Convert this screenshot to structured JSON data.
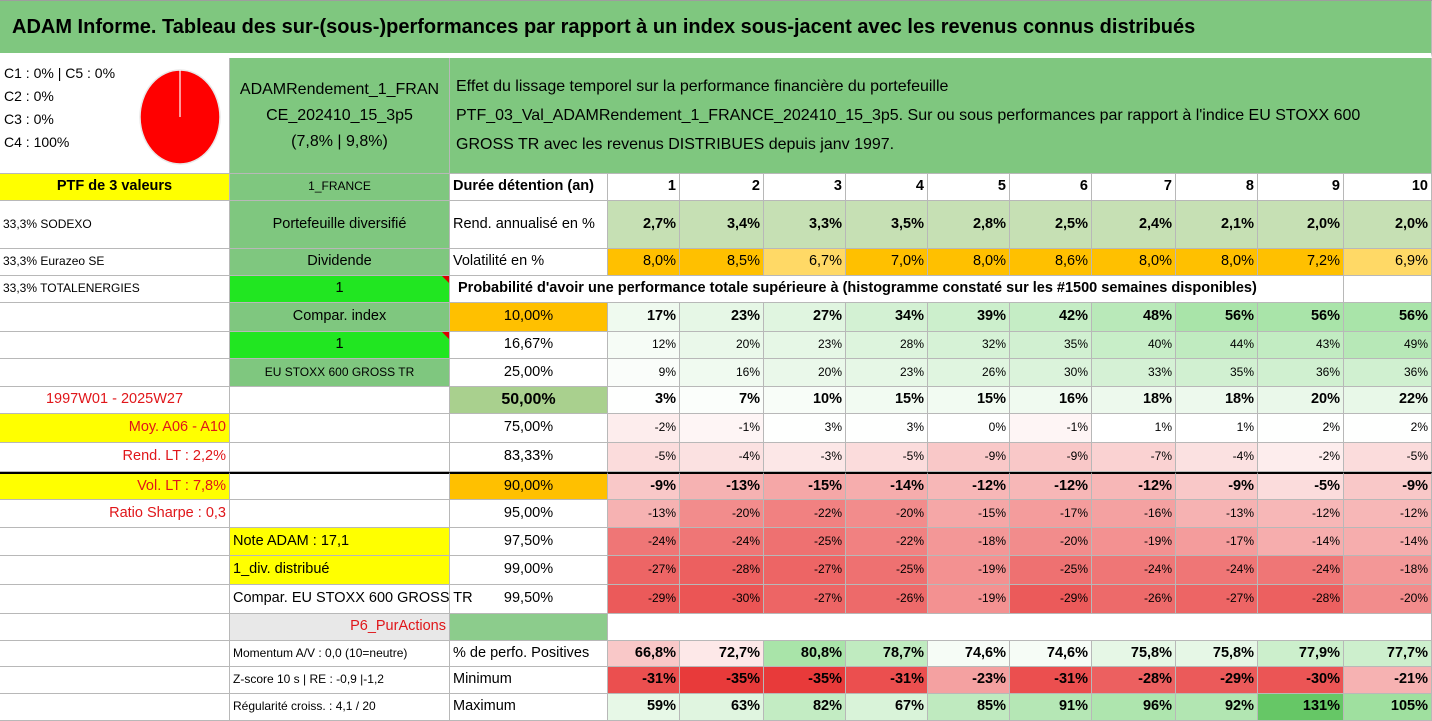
{
  "title": "ADAM Informe. Tableau des sur-(sous-)performances par rapport à un index sous-jacent avec les revenus connus distribués",
  "pie": {
    "lines": [
      "C1 : 0% | C5 : 0%",
      "C2 : 0%",
      "C3 : 0%",
      "C4 : 100%"
    ],
    "color": "#ff0000"
  },
  "header": {
    "portfolio_name_1": "ADAMRendement_1_FRAN",
    "portfolio_name_2": "CE_202410_15_3p5",
    "portfolio_perf": "(7,8% | 9,8%)",
    "desc_1": "Effet du lissage temporel sur la performance financière du portefeuille",
    "desc_2": "PTF_03_Val_ADAMRendement_1_FRANCE_202410_15_3p5. Sur ou sous performances par rapport à l'indice EU STOXX 600",
    "desc_3": "GROSS TR avec les revenus DISTRIBUES depuis janv 1997."
  },
  "col_a": {
    "ptf": "PTF de 3 valeurs",
    "holding_1": "33,3% SODEXO",
    "holding_2": "33,3% Eurazeo SE",
    "holding_3": "33,3% TOTALENERGIES",
    "period": "1997W01 - 2025W27",
    "moy": "Moy. A06 - A10",
    "rend_lt": "Rend. LT : 2,2%",
    "vol_lt": "Vol. LT : 7,8%",
    "sharpe": "Ratio Sharpe : 0,3",
    "note": "Note ADAM : 17,1",
    "div": "1_div. distribué",
    "compar": "Compar. EU STOXX 600 GROSS TR",
    "p6": "P6_PurActions",
    "momentum": "Momentum A/V : 0,0 (10=neutre)",
    "zscore": "Z-score 10 s | RE : -0,9 |-1,2",
    "regularite": "Régularité croiss. : 4,1 / 20"
  },
  "col_b": {
    "france": "1_FRANCE",
    "diversifie": "Portefeuille diversifié",
    "dividende": "Dividende",
    "one_a": "1",
    "compar_index": "Compar. index",
    "one_b": "1",
    "index": "EU STOXX 600 GROSS TR"
  },
  "duration_label": "Durée détention (an)",
  "years": [
    "1",
    "2",
    "3",
    "4",
    "5",
    "6",
    "7",
    "8",
    "9",
    "10"
  ],
  "rend_label": "Rend. annualisé en %",
  "rend": [
    "2,7%",
    "3,4%",
    "3,3%",
    "3,5%",
    "2,8%",
    "2,5%",
    "2,4%",
    "2,1%",
    "2,0%",
    "2,0%"
  ],
  "vol_label": "Volatilité en %",
  "vol": [
    "8,0%",
    "8,5%",
    "6,7%",
    "7,0%",
    "8,0%",
    "8,6%",
    "8,0%",
    "8,0%",
    "7,2%",
    "6,9%"
  ],
  "prob_header": "Probabilité d'avoir une performance totale supérieure à (histogramme constaté sur les #1500 semaines disponibles)",
  "prob_rows": [
    {
      "label": "10,00%",
      "values": [
        "17%",
        "23%",
        "27%",
        "34%",
        "39%",
        "42%",
        "48%",
        "56%",
        "56%",
        "56%"
      ],
      "colors": [
        "#effaef",
        "#e6f7e6",
        "#e0f5e0",
        "#d3f1d3",
        "#ccefcc",
        "#c5edc5",
        "#b9e9b9",
        "#a9e4a9",
        "#a9e4a9",
        "#a9e4a9"
      ]
    },
    {
      "label": "16,67%",
      "values": [
        "12%",
        "20%",
        "23%",
        "28%",
        "32%",
        "35%",
        "40%",
        "44%",
        "43%",
        "49%"
      ],
      "colors": [
        "#f6fcf6",
        "#eaf8ea",
        "#e6f7e6",
        "#ddf4dd",
        "#d6f2d6",
        "#d1f0d1",
        "#c8eec8",
        "#c0ebc0",
        "#c2ecc2",
        "#b7e8b7"
      ]
    },
    {
      "label": "25,00%",
      "values": [
        "9%",
        "16%",
        "20%",
        "23%",
        "26%",
        "30%",
        "33%",
        "35%",
        "36%",
        "36%"
      ],
      "colors": [
        "#fafdfa",
        "#f0faf0",
        "#eaf8ea",
        "#e6f7e6",
        "#e0f5e0",
        "#dbf3db",
        "#d5f1d5",
        "#d1f0d1",
        "#d0f0d0",
        "#d0f0d0"
      ]
    },
    {
      "label": "50,00%",
      "values": [
        "3%",
        "7%",
        "10%",
        "15%",
        "15%",
        "16%",
        "18%",
        "18%",
        "20%",
        "22%"
      ],
      "colors": [
        "#fefffe",
        "#fbfefb",
        "#f8fdf8",
        "#f2fbf2",
        "#f2fbf2",
        "#f0faf0",
        "#edf9ed",
        "#edf9ed",
        "#eaf8ea",
        "#e8f8e8"
      ]
    },
    {
      "label": "75,00%",
      "values": [
        "-2%",
        "-1%",
        "3%",
        "3%",
        "0%",
        "-1%",
        "1%",
        "1%",
        "2%",
        "2%"
      ],
      "colors": [
        "#fdeded",
        "#fef5f5",
        "#fefffe",
        "#fefffe",
        "#ffffff",
        "#fef5f5",
        "#ffffff",
        "#ffffff",
        "#fefffe",
        "#fefffe"
      ]
    },
    {
      "label": "83,33%",
      "values": [
        "-5%",
        "-4%",
        "-3%",
        "-5%",
        "-9%",
        "-9%",
        "-7%",
        "-4%",
        "-2%",
        "-5%"
      ],
      "colors": [
        "#fbdcdc",
        "#fbe1e1",
        "#fce7e7",
        "#fbdcdc",
        "#f9c8c8",
        "#f9c8c8",
        "#fad2d2",
        "#fbe1e1",
        "#fdeded",
        "#fbdcdc"
      ]
    },
    {
      "label": "90,00%",
      "values": [
        "-9%",
        "-13%",
        "-15%",
        "-14%",
        "-12%",
        "-12%",
        "-12%",
        "-9%",
        "-5%",
        "-9%"
      ],
      "colors": [
        "#f9c8c8",
        "#f6b2b2",
        "#f5a7a7",
        "#f6adad",
        "#f7b7b7",
        "#f7b7b7",
        "#f7b7b7",
        "#f9c8c8",
        "#fbdcdc",
        "#f9c8c8"
      ]
    },
    {
      "label": "95,00%",
      "values": [
        "-13%",
        "-20%",
        "-22%",
        "-20%",
        "-15%",
        "-17%",
        "-16%",
        "-13%",
        "-12%",
        "-12%"
      ],
      "colors": [
        "#f6b2b2",
        "#f28c8c",
        "#f18181",
        "#f28c8c",
        "#f5a7a7",
        "#f49c9c",
        "#f4a1a1",
        "#f6b2b2",
        "#f7b7b7",
        "#f7b7b7"
      ]
    },
    {
      "label": "97,50%",
      "values": [
        "-24%",
        "-24%",
        "-25%",
        "-22%",
        "-18%",
        "-20%",
        "-19%",
        "-17%",
        "-14%",
        "-14%"
      ],
      "colors": [
        "#ef7676",
        "#ef7676",
        "#ee7171",
        "#f18181",
        "#f39797",
        "#f28c8c",
        "#f39191",
        "#f49c9c",
        "#f6adad",
        "#f6adad"
      ]
    },
    {
      "label": "99,00%",
      "values": [
        "-27%",
        "-28%",
        "-27%",
        "-25%",
        "-19%",
        "-25%",
        "-24%",
        "-24%",
        "-24%",
        "-18%"
      ],
      "colors": [
        "#ed6565",
        "#ec6060",
        "#ed6565",
        "#ee7171",
        "#f39191",
        "#ee7171",
        "#ef7676",
        "#ef7676",
        "#ef7676",
        "#f39797"
      ]
    },
    {
      "label": "99,50%",
      "values": [
        "-29%",
        "-30%",
        "-27%",
        "-26%",
        "-19%",
        "-29%",
        "-26%",
        "-27%",
        "-28%",
        "-20%"
      ],
      "colors": [
        "#eb5a5a",
        "#eb5555",
        "#ed6565",
        "#ed6a6a",
        "#f39191",
        "#eb5a5a",
        "#ed6a6a",
        "#ed6565",
        "#ec6060",
        "#f28c8c"
      ]
    }
  ],
  "pos_label": "% de perfo. Positives",
  "pos": [
    "66,8%",
    "72,7%",
    "80,8%",
    "78,7%",
    "74,6%",
    "74,6%",
    "75,8%",
    "75,8%",
    "77,9%",
    "77,7%"
  ],
  "pos_colors": [
    "#f9c8c8",
    "#fde8e8",
    "#a9e4a9",
    "#c0ebc0",
    "#f6fcf6",
    "#f6fcf6",
    "#e6f7e6",
    "#e6f7e6",
    "#ccefcc",
    "#cdefcd"
  ],
  "min_label": "Minimum",
  "min": [
    "-31%",
    "-35%",
    "-35%",
    "-31%",
    "-23%",
    "-31%",
    "-28%",
    "-29%",
    "-30%",
    "-21%"
  ],
  "min_colors": [
    "#eb4f4f",
    "#e83a3a",
    "#e83a3a",
    "#eb4f4f",
    "#f4a1a1",
    "#eb4f4f",
    "#ec6060",
    "#eb5a5a",
    "#eb5555",
    "#f6b2b2"
  ],
  "max_label": "Maximum",
  "max": [
    "59%",
    "63%",
    "82%",
    "67%",
    "85%",
    "91%",
    "96%",
    "92%",
    "131%",
    "105%"
  ],
  "max_colors": [
    "#e7f8e7",
    "#e0f5e0",
    "#c3ecc3",
    "#d9f3d9",
    "#bfeabf",
    "#b5e7b5",
    "#aee5ae",
    "#b2e6b2",
    "#66c766",
    "#9fe09f"
  ]
}
